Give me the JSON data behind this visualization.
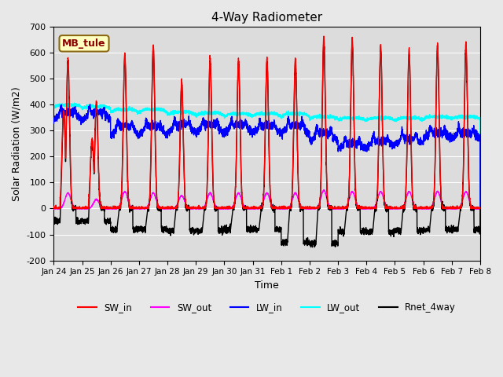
{
  "title": "4-Way Radiometer",
  "xlabel": "Time",
  "ylabel": "Solar Radiation (W/m2)",
  "ylim": [
    -200,
    700
  ],
  "yticks": [
    -200,
    -100,
    0,
    100,
    200,
    300,
    400,
    500,
    600,
    700
  ],
  "xtick_labels": [
    "Jan 24",
    "Jan 25",
    "Jan 26",
    "Jan 27",
    "Jan 28",
    "Jan 29",
    "Jan 30",
    "Jan 31",
    "Feb 1",
    "Feb 2",
    "Feb 3",
    "Feb 4",
    "Feb 5",
    "Feb 6",
    "Feb 7",
    "Feb 8"
  ],
  "station_label": "MB_tule",
  "station_label_color": "#8B0000",
  "station_box_facecolor": "#FFFFC0",
  "station_box_edgecolor": "#8B6914",
  "background_color": "#E8E8E8",
  "plot_bg_color": "#DCDCDC",
  "grid_color": "#FFFFFF",
  "series": {
    "SW_in": {
      "color": "#FF0000",
      "lw": 1.0
    },
    "SW_out": {
      "color": "#FF00FF",
      "lw": 1.0
    },
    "LW_in": {
      "color": "#0000FF",
      "lw": 1.0
    },
    "LW_out": {
      "color": "#00FFFF",
      "lw": 1.0
    },
    "Rnet_4way": {
      "color": "#000000",
      "lw": 1.0
    }
  },
  "legend_labels": [
    "SW_in",
    "SW_out",
    "LW_in",
    "LW_out",
    "Rnet_4way"
  ],
  "legend_colors": [
    "#FF0000",
    "#FF00FF",
    "#0000FF",
    "#00FFFF",
    "#000000"
  ],
  "sw_in_peaks": [
    580,
    410,
    600,
    630,
    490,
    580,
    575,
    580,
    575,
    660,
    655,
    630,
    615,
    635,
    635
  ],
  "sw_out_peaks": [
    60,
    35,
    65,
    60,
    50,
    60,
    60,
    60,
    60,
    70,
    65,
    65,
    65,
    65,
    65
  ],
  "lw_in_base": [
    340,
    340,
    280,
    280,
    290,
    290,
    290,
    290,
    290,
    260,
    230,
    240,
    250,
    270,
    270
  ],
  "lw_in_amp": [
    30,
    30,
    40,
    40,
    35,
    35,
    35,
    30,
    30,
    30,
    20,
    20,
    20,
    20,
    20
  ],
  "lw_out_base": [
    390,
    385,
    370,
    370,
    360,
    358,
    355,
    355,
    355,
    345,
    340,
    340,
    340,
    345,
    345
  ],
  "lw_out_amp": [
    15,
    15,
    20,
    20,
    20,
    18,
    18,
    18,
    18,
    15,
    15,
    15,
    15,
    15,
    15
  ],
  "rnet_night": [
    -50,
    -50,
    -80,
    -80,
    -85,
    -85,
    -80,
    -80,
    -130,
    -135,
    -90,
    -90,
    -85,
    -80,
    -80
  ],
  "n_days": 15,
  "n_points_per_day": 288,
  "figsize": [
    6.4,
    4.8
  ],
  "dpi": 100
}
